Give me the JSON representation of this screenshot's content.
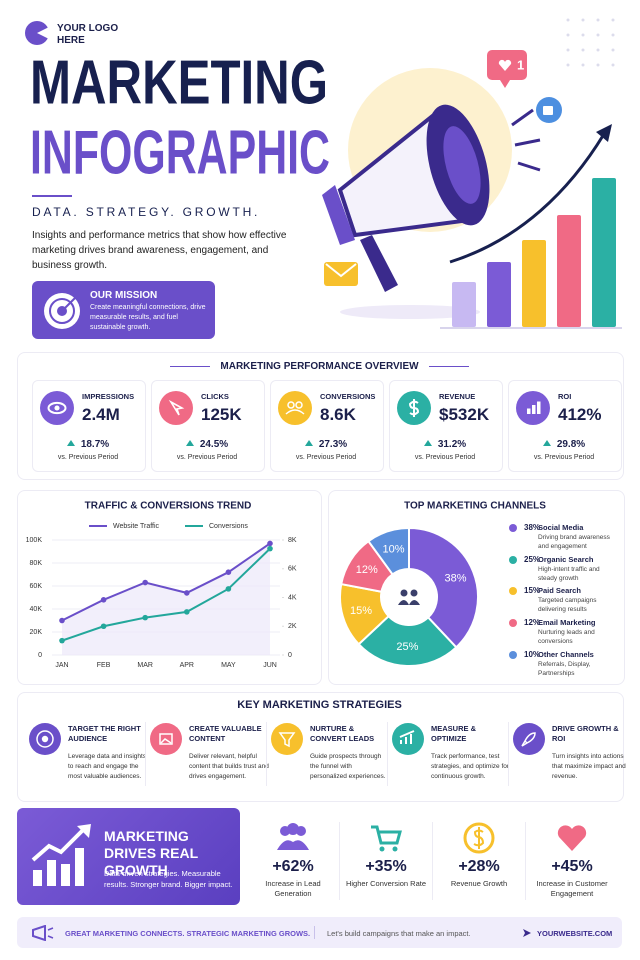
{
  "logo": "YOUR LOGO HERE",
  "header": {
    "title_1": "MARKETING",
    "title_2": "INFOGRAPHIC",
    "tagline": "DATA. STRATEGY. GROWTH.",
    "description": "Insights and performance metrics that show how effective marketing drives brand awareness, engagement, and business growth.",
    "badge": "1",
    "mission": {
      "title": "OUR MISSION",
      "text": "Create meaningful connections, drive measurable results, and fuel sustainable growth."
    }
  },
  "overview": {
    "title": "MARKETING PERFORMANCE OVERVIEW",
    "cards": [
      {
        "label": "IMPRESSIONS",
        "value": "2.4M",
        "change": "18.7%",
        "note": "vs. Previous Period"
      },
      {
        "label": "CLICKS",
        "value": "125K",
        "change": "24.5%",
        "note": "vs. Previous Period"
      },
      {
        "label": "CONVERSIONS",
        "value": "8.6K",
        "change": "27.3%",
        "note": "vs. Previous Period"
      },
      {
        "label": "REVENUE",
        "value": "$532K",
        "change": "31.2%",
        "note": "vs. Previous Period"
      },
      {
        "label": "ROI",
        "value": "412%",
        "change": "29.8%",
        "note": "vs. Previous Period"
      }
    ]
  },
  "chart_data": [
    {
      "type": "line",
      "title": "TRAFFIC & CONVERSIONS TREND",
      "categories": [
        "JAN",
        "FEB",
        "MAR",
        "APR",
        "MAY",
        "JUN"
      ],
      "series": [
        {
          "name": "Website Traffic",
          "color": "#6a4fc9",
          "values": [
            30000,
            48000,
            63000,
            54000,
            72000,
            97000
          ]
        },
        {
          "name": "Conversions",
          "color": "#23a79b",
          "axis": "y2",
          "values": [
            1000,
            2000,
            2600,
            3000,
            4600,
            7400
          ]
        }
      ],
      "ylim": [
        0,
        100000
      ],
      "yticks": [
        0,
        {
          "value": 20000,
          "label": "20K"
        },
        {
          "value": 40000,
          "label": "40K"
        },
        {
          "value": 60000,
          "label": "60K"
        },
        {
          "value": 80000,
          "label": "80K"
        },
        {
          "value": 100000,
          "label": "100K"
        }
      ],
      "y2lim": [
        0,
        8000
      ],
      "y2ticks": [
        0,
        {
          "value": 2000,
          "label": "2K"
        },
        {
          "value": 4000,
          "label": "4K"
        },
        {
          "value": 6000,
          "label": "6K"
        },
        {
          "value": 8000,
          "label": "8K"
        }
      ],
      "grid": true
    },
    {
      "type": "pie",
      "title": "TOP MARKETING CHANNELS",
      "categories": [
        "Social Media",
        "Organic Search",
        "Paid Search",
        "Email Marketing",
        "Other Channels"
      ],
      "values": [
        38,
        25,
        15,
        12,
        10
      ],
      "value_labels": [
        "38%",
        "25%",
        "15%",
        "12%",
        "10%"
      ],
      "colors": [
        "#7b5bd6",
        "#2bb0a4",
        "#f7c02c",
        "#f06a85",
        "#5b8fdc"
      ],
      "descriptions": [
        "Driving brand awareness and engagement",
        "High-intent traffic and steady growth",
        "Targeted campaigns delivering results",
        "Nurturing leads and conversions",
        "Referrals, Display, Partnerships"
      ]
    }
  ],
  "strategies": {
    "title": "KEY MARKETING STRATEGIES",
    "items": [
      {
        "title": "TARGET THE RIGHT AUDIENCE",
        "text": "Leverage data and insights to reach and engage the most valuable audiences."
      },
      {
        "title": "CREATE VALUABLE CONTENT",
        "text": "Deliver relevant, helpful content that builds trust and drives engagement."
      },
      {
        "title": "NURTURE & CONVERT LEADS",
        "text": "Guide prospects through the funnel with personalized experiences."
      },
      {
        "title": "MEASURE & OPTIMIZE",
        "text": "Track performance, test strategies, and optimize for continuous growth."
      },
      {
        "title": "DRIVE GROWTH & ROI",
        "text": "Turn insights into actions that maximize impact and revenue."
      }
    ]
  },
  "growth": {
    "title": "MARKETING DRIVES REAL GROWTH",
    "text": "Data-driven strategies. Measurable results. Stronger brand. Bigger impact.",
    "stats": [
      {
        "value": "+62%",
        "label": "Increase in Lead Generation"
      },
      {
        "value": "+35%",
        "label": "Higher Conversion Rate"
      },
      {
        "value": "+28%",
        "label": "Revenue Growth"
      },
      {
        "value": "+45%",
        "label": "Increase in Customer Engagement"
      }
    ]
  },
  "footer": {
    "left": "GREAT MARKETING CONNECTS. STRATEGIC MARKETING GROWS.",
    "middle": "Let's build campaigns that make an impact.",
    "right": "YOURWEBSITE.COM"
  }
}
